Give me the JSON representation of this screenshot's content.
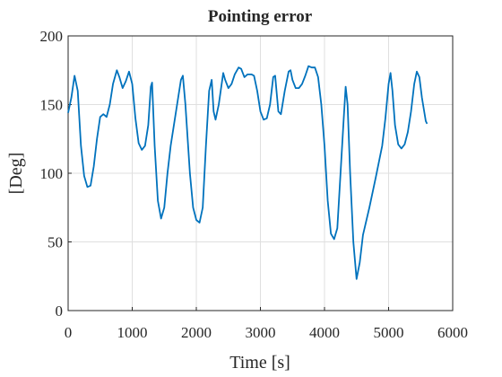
{
  "chart_data": {
    "type": "line",
    "title": "Pointing error",
    "x_label": "Time [s]",
    "y_label": "[Deg]",
    "x": [
      0,
      50,
      100,
      150,
      200,
      250,
      300,
      350,
      400,
      450,
      500,
      550,
      600,
      650,
      700,
      760,
      800,
      850,
      900,
      950,
      1000,
      1050,
      1100,
      1150,
      1200,
      1250,
      1290,
      1310,
      1350,
      1400,
      1450,
      1500,
      1550,
      1600,
      1650,
      1700,
      1760,
      1790,
      1830,
      1900,
      1950,
      2000,
      2050,
      2100,
      2150,
      2200,
      2240,
      2270,
      2300,
      2350,
      2420,
      2450,
      2500,
      2550,
      2600,
      2660,
      2700,
      2750,
      2800,
      2860,
      2900,
      2950,
      3000,
      3050,
      3100,
      3150,
      3200,
      3230,
      3280,
      3320,
      3380,
      3440,
      3470,
      3500,
      3550,
      3600,
      3650,
      3700,
      3750,
      3800,
      3850,
      3900,
      3950,
      4000,
      4050,
      4100,
      4150,
      4200,
      4250,
      4300,
      4330,
      4360,
      4400,
      4450,
      4500,
      4550,
      4600,
      4700,
      4800,
      4900,
      4950,
      5000,
      5030,
      5060,
      5100,
      5150,
      5200,
      5250,
      5300,
      5350,
      5400,
      5440,
      5480,
      5520,
      5580,
      5600
    ],
    "series": [
      {
        "name": "Pointing error",
        "color": "#0072bd",
        "values": [
          144,
          155,
          171,
          160,
          120,
          98,
          90,
          91,
          105,
          125,
          141,
          143,
          141,
          150,
          165,
          175,
          170,
          162,
          167,
          174,
          165,
          140,
          122,
          117,
          120,
          135,
          163,
          166,
          120,
          80,
          67,
          75,
          100,
          120,
          135,
          150,
          168,
          171,
          150,
          100,
          75,
          66,
          64,
          75,
          120,
          160,
          168,
          145,
          139,
          150,
          173,
          168,
          162,
          165,
          172,
          177,
          176,
          170,
          172,
          172,
          171,
          160,
          145,
          139,
          140,
          150,
          170,
          171,
          145,
          143,
          160,
          174,
          175,
          168,
          162,
          162,
          165,
          171,
          178,
          177,
          177,
          170,
          150,
          120,
          80,
          56,
          52,
          60,
          100,
          140,
          163,
          150,
          100,
          50,
          23,
          35,
          55,
          75,
          97,
          120,
          140,
          165,
          173,
          160,
          135,
          121,
          118,
          121,
          130,
          145,
          165,
          174,
          170,
          155,
          138,
          136
        ]
      }
    ],
    "xlim": [
      0,
      6000
    ],
    "xticks": [
      0,
      1000,
      2000,
      3000,
      4000,
      5000,
      6000
    ],
    "ylim": [
      0,
      200
    ],
    "yticks": [
      0,
      50,
      100,
      150,
      200
    ],
    "grid": true
  }
}
